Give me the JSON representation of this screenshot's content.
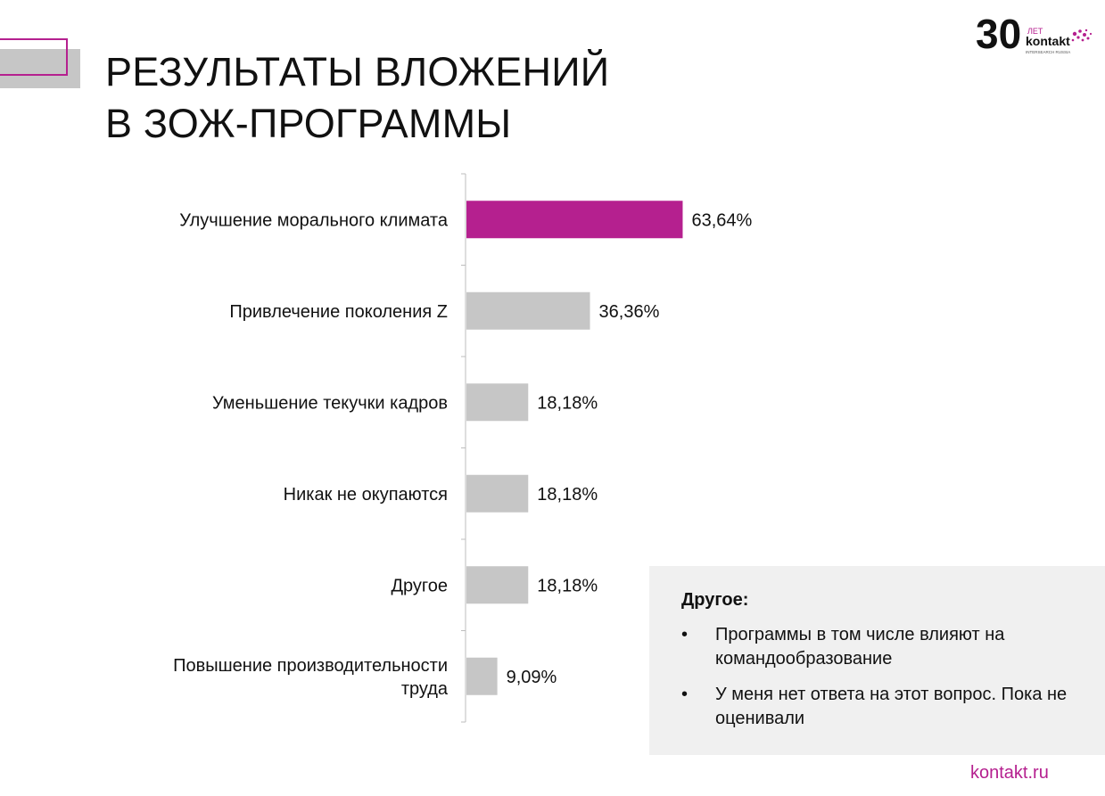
{
  "title": {
    "line1": "РЕЗУЛЬТАТЫ ВЛОЖЕНИЙ",
    "line2": "В ЗОЖ-ПРОГРАММЫ"
  },
  "logo": {
    "number": "30",
    "small": "ЛЕТ",
    "brand": "kontakt",
    "sub": "INTERSEARCH RUSSIA"
  },
  "colors": {
    "accent": "#b5208f",
    "bar": "#c6c6c6",
    "axis": "#bdbdbd"
  },
  "chart_data": {
    "type": "bar",
    "orientation": "horizontal",
    "categories": [
      "Улучшение морального климата",
      "Привлечение поколения Z",
      "Уменьшение текучки кадров",
      "Никак не окупаются",
      "Другое",
      "Повышение производительности труда"
    ],
    "category_lines": [
      [
        "Улучшение морального климата"
      ],
      [
        "Привлечение поколения Z"
      ],
      [
        "Уменьшение текучки кадров"
      ],
      [
        "Никак не окупаются"
      ],
      [
        "Другое"
      ],
      [
        "Повышение производительности",
        "труда"
      ]
    ],
    "values": [
      63.64,
      36.36,
      18.18,
      18.18,
      18.18,
      9.09
    ],
    "value_labels": [
      "63,64%",
      "36,36%",
      "18,18%",
      "18,18%",
      "18,18%",
      "9,09%"
    ],
    "highlight_index": 0,
    "xlim": [
      0,
      100
    ],
    "grid": false,
    "legend": "none"
  },
  "note": {
    "title": "Другое:",
    "items": [
      "Программы в том числе влияют на командообразование",
      "У меня нет ответа на этот вопрос. Пока не оценивали"
    ]
  },
  "footer": {
    "site": "kontakt.ru"
  }
}
